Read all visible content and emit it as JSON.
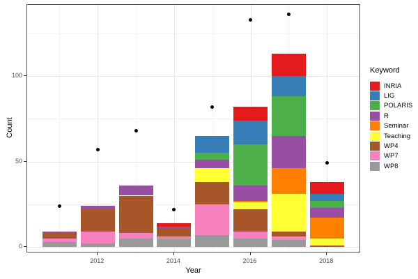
{
  "chart": {
    "xlabel": "Year",
    "ylabel": "Count",
    "legend_title": "Keyword"
  },
  "chart_data": {
    "type": "bar",
    "subtype": "stacked bars with black point overlay",
    "title": "",
    "xlabel": "Year",
    "ylabel": "Count",
    "legend_title": "Keyword",
    "legend_position": "right",
    "grid": true,
    "x": [
      2011,
      2012,
      2013,
      2014,
      2015,
      2016,
      2017,
      2018
    ],
    "xticks": [
      2012,
      2014,
      2016,
      2018
    ],
    "yticks": [
      0,
      50,
      100
    ],
    "ylim": [
      0,
      141
    ],
    "stack_order_top_to_bottom": [
      "INRIA",
      "LIG",
      "POLARIS",
      "R",
      "Seminar",
      "Teaching",
      "WP4",
      "WP7",
      "WP8"
    ],
    "series": [
      {
        "name": "INRIA",
        "color": "#E41A1C",
        "values": [
          0,
          0,
          0,
          2,
          0,
          8,
          13,
          7
        ]
      },
      {
        "name": "LIG",
        "color": "#377EB8",
        "values": [
          0,
          0,
          0,
          0,
          10,
          14,
          12,
          4
        ]
      },
      {
        "name": "POLARIS",
        "color": "#4DAF4A",
        "values": [
          0,
          0,
          0,
          0,
          4,
          24,
          23,
          4
        ]
      },
      {
        "name": "R",
        "color": "#984EA3",
        "values": [
          1,
          2,
          6,
          1,
          5,
          9,
          19,
          6
        ]
      },
      {
        "name": "Seminar",
        "color": "#FF7F00",
        "values": [
          0,
          0,
          0,
          0,
          0,
          1,
          15,
          12
        ]
      },
      {
        "name": "Teaching",
        "color": "#FFFF33",
        "values": [
          0,
          0,
          0,
          0,
          8,
          4,
          22,
          4
        ]
      },
      {
        "name": "WP4",
        "color": "#A65628",
        "values": [
          3,
          13,
          22,
          5,
          13,
          13,
          3,
          1
        ]
      },
      {
        "name": "WP7",
        "color": "#F781BF",
        "values": [
          2,
          7,
          3,
          1,
          18,
          4,
          2,
          0
        ]
      },
      {
        "name": "WP8",
        "color": "#999999",
        "values": [
          3,
          2,
          5,
          5,
          7,
          5,
          4,
          0
        ]
      }
    ],
    "bar_totals": [
      9,
      24,
      36,
      14,
      65,
      82,
      113,
      38
    ],
    "points": {
      "name": "overlay-points",
      "color": "#000000",
      "values": [
        24,
        57,
        68,
        22,
        82,
        133,
        136,
        49
      ]
    }
  }
}
